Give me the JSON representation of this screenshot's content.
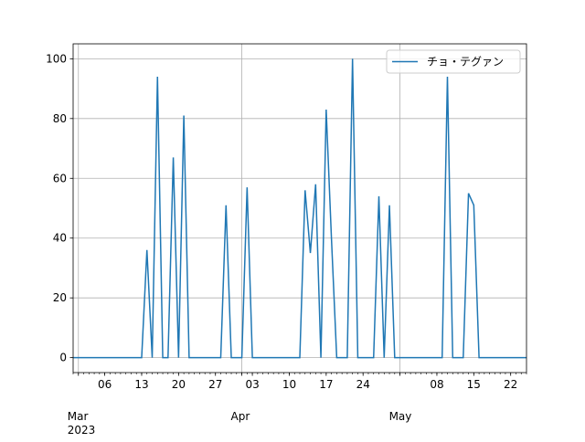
{
  "chart_data": {
    "type": "line",
    "x": [
      "2023-02-28",
      "2023-03-01",
      "2023-03-02",
      "2023-03-03",
      "2023-03-04",
      "2023-03-05",
      "2023-03-06",
      "2023-03-07",
      "2023-03-08",
      "2023-03-09",
      "2023-03-10",
      "2023-03-11",
      "2023-03-12",
      "2023-03-13",
      "2023-03-14",
      "2023-03-15",
      "2023-03-16",
      "2023-03-17",
      "2023-03-18",
      "2023-03-19",
      "2023-03-20",
      "2023-03-21",
      "2023-03-22",
      "2023-03-23",
      "2023-03-24",
      "2023-03-25",
      "2023-03-26",
      "2023-03-27",
      "2023-03-28",
      "2023-03-29",
      "2023-03-30",
      "2023-03-31",
      "2023-04-01",
      "2023-04-02",
      "2023-04-03",
      "2023-04-04",
      "2023-04-05",
      "2023-04-06",
      "2023-04-07",
      "2023-04-08",
      "2023-04-09",
      "2023-04-10",
      "2023-04-11",
      "2023-04-12",
      "2023-04-13",
      "2023-04-14",
      "2023-04-15",
      "2023-04-16",
      "2023-04-17",
      "2023-04-18",
      "2023-04-19",
      "2023-04-20",
      "2023-04-21",
      "2023-04-22",
      "2023-04-23",
      "2023-04-24",
      "2023-04-25",
      "2023-04-26",
      "2023-04-27",
      "2023-04-28",
      "2023-04-29",
      "2023-04-30",
      "2023-05-01",
      "2023-05-02",
      "2023-05-03",
      "2023-05-04",
      "2023-05-05",
      "2023-05-06",
      "2023-05-07",
      "2023-05-08",
      "2023-05-09",
      "2023-05-10",
      "2023-05-11",
      "2023-05-12",
      "2023-05-13",
      "2023-05-14",
      "2023-05-15",
      "2023-05-16",
      "2023-05-17",
      "2023-05-18",
      "2023-05-19",
      "2023-05-20",
      "2023-05-21",
      "2023-05-22",
      "2023-05-23",
      "2023-05-24",
      "2023-05-25"
    ],
    "series": [
      {
        "name": "チョ・テグァン",
        "color": "#1f77b4",
        "values": [
          0,
          0,
          0,
          0,
          0,
          0,
          0,
          0,
          0,
          0,
          0,
          0,
          0,
          0,
          36,
          0,
          94,
          0,
          0,
          67,
          0,
          81,
          0,
          0,
          0,
          0,
          0,
          0,
          0,
          51,
          0,
          0,
          0,
          57,
          0,
          0,
          0,
          0,
          0,
          0,
          0,
          0,
          0,
          0,
          56,
          35,
          58,
          0,
          83,
          40,
          0,
          0,
          0,
          100,
          0,
          0,
          0,
          0,
          54,
          0,
          51,
          0,
          0,
          0,
          0,
          0,
          0,
          0,
          0,
          0,
          0,
          94,
          0,
          0,
          0,
          55,
          51,
          0,
          0,
          0,
          0,
          0,
          0,
          0,
          0,
          0,
          0
        ]
      }
    ],
    "xlim": [
      "2023-02-28",
      "2023-05-25"
    ],
    "xticks": [
      {
        "value": "2023-03-01",
        "label": "Mar\n2023"
      },
      {
        "value": "2023-03-06",
        "label": "06"
      },
      {
        "value": "2023-03-13",
        "label": "13"
      },
      {
        "value": "2023-03-20",
        "label": "20"
      },
      {
        "value": "2023-03-27",
        "label": "27"
      },
      {
        "value": "2023-04-01",
        "label": "Apr"
      },
      {
        "value": "2023-04-03",
        "label": "03"
      },
      {
        "value": "2023-04-10",
        "label": "10"
      },
      {
        "value": "2023-04-17",
        "label": "17"
      },
      {
        "value": "2023-04-24",
        "label": "24"
      },
      {
        "value": "2023-05-01",
        "label": "May"
      },
      {
        "value": "2023-05-08",
        "label": "08"
      },
      {
        "value": "2023-05-15",
        "label": "15"
      },
      {
        "value": "2023-05-22",
        "label": "22"
      }
    ],
    "ylim": [
      -5,
      105
    ],
    "yticks": [
      0,
      20,
      40,
      60,
      80,
      100
    ],
    "grid": true,
    "legend": "upper right"
  }
}
